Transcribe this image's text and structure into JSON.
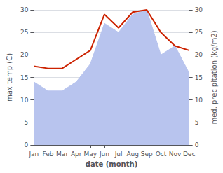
{
  "chart_data": {
    "type": "line",
    "categories": [
      "Jan",
      "Feb",
      "Mar",
      "Apr",
      "May",
      "Jun",
      "Jul",
      "Aug",
      "Sep",
      "Oct",
      "Nov",
      "Dec"
    ],
    "xlabel": "date (month)",
    "ylabel": "max temp (C)",
    "y2label": "med. precipitation (kg/m2)",
    "series": [
      {
        "type": "area",
        "color": "#b8c4ee",
        "values": [
          14,
          12,
          12,
          14,
          18,
          27,
          25,
          29,
          30,
          20,
          22,
          16
        ]
      },
      {
        "type": "line",
        "color": "#cc2200",
        "axis": "y2",
        "values": [
          17.5,
          17.0,
          17.0,
          19.0,
          21.0,
          29.0,
          26.0,
          29.5,
          30.0,
          25.0,
          22.0,
          21.0
        ]
      }
    ],
    "ylim": [
      0,
      30
    ],
    "yticks": [
      0,
      5,
      10,
      15,
      20,
      25,
      30
    ],
    "y2lim": [
      0,
      30
    ],
    "y2ticks": [
      0,
      5,
      10,
      15,
      20,
      25,
      30
    ],
    "grid": true
  }
}
